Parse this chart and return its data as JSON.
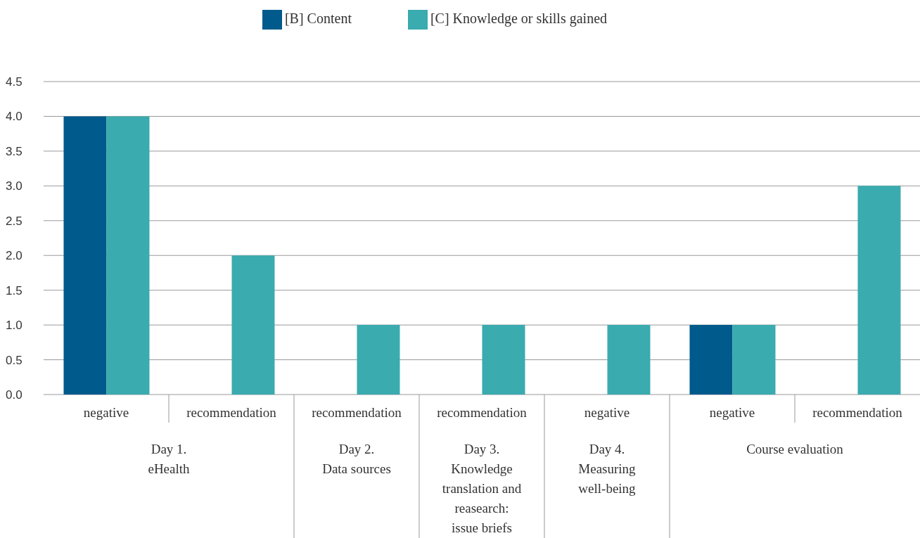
{
  "chart_data": {
    "type": "bar",
    "categories": [
      "negative",
      "recommendation",
      "recommendation",
      "recommendation",
      "negative",
      "negative",
      "recommendation"
    ],
    "series": [
      {
        "name": "[B] Content",
        "color": "#005a8c",
        "values": [
          4,
          0,
          0,
          0,
          0,
          1,
          0
        ]
      },
      {
        "name": "[C] Knowledge or skills gained",
        "color": "#3aabaf",
        "values": [
          4,
          2,
          1,
          1,
          1,
          1,
          3
        ]
      }
    ],
    "annotations": [
      "Day 1.\neHealth",
      "Day 2.\nData sources",
      "Day 3.\nKnowledge\ntranslation and\nreasearch:\nissue briefs",
      "Day 4.\nMeasuring\nwell-being",
      "Course evaluation"
    ],
    "ylim": [
      0,
      4.5
    ],
    "yticks": [
      {
        "value": 0,
        "label": "0.0"
      },
      {
        "value": 0.5,
        "label": "0.5"
      },
      {
        "value": 1,
        "label": "1.0"
      },
      {
        "value": 1.5,
        "label": "1.5"
      },
      {
        "value": 2,
        "label": "2.0"
      },
      {
        "value": 2.5,
        "label": "2.5"
      },
      {
        "value": 3,
        "label": "3.0"
      },
      {
        "value": 3.5,
        "label": "3.5"
      },
      {
        "value": 4,
        "label": "4.0"
      },
      {
        "value": 4.5,
        "label": "4.5"
      }
    ],
    "grid": "y",
    "legend": "top"
  }
}
